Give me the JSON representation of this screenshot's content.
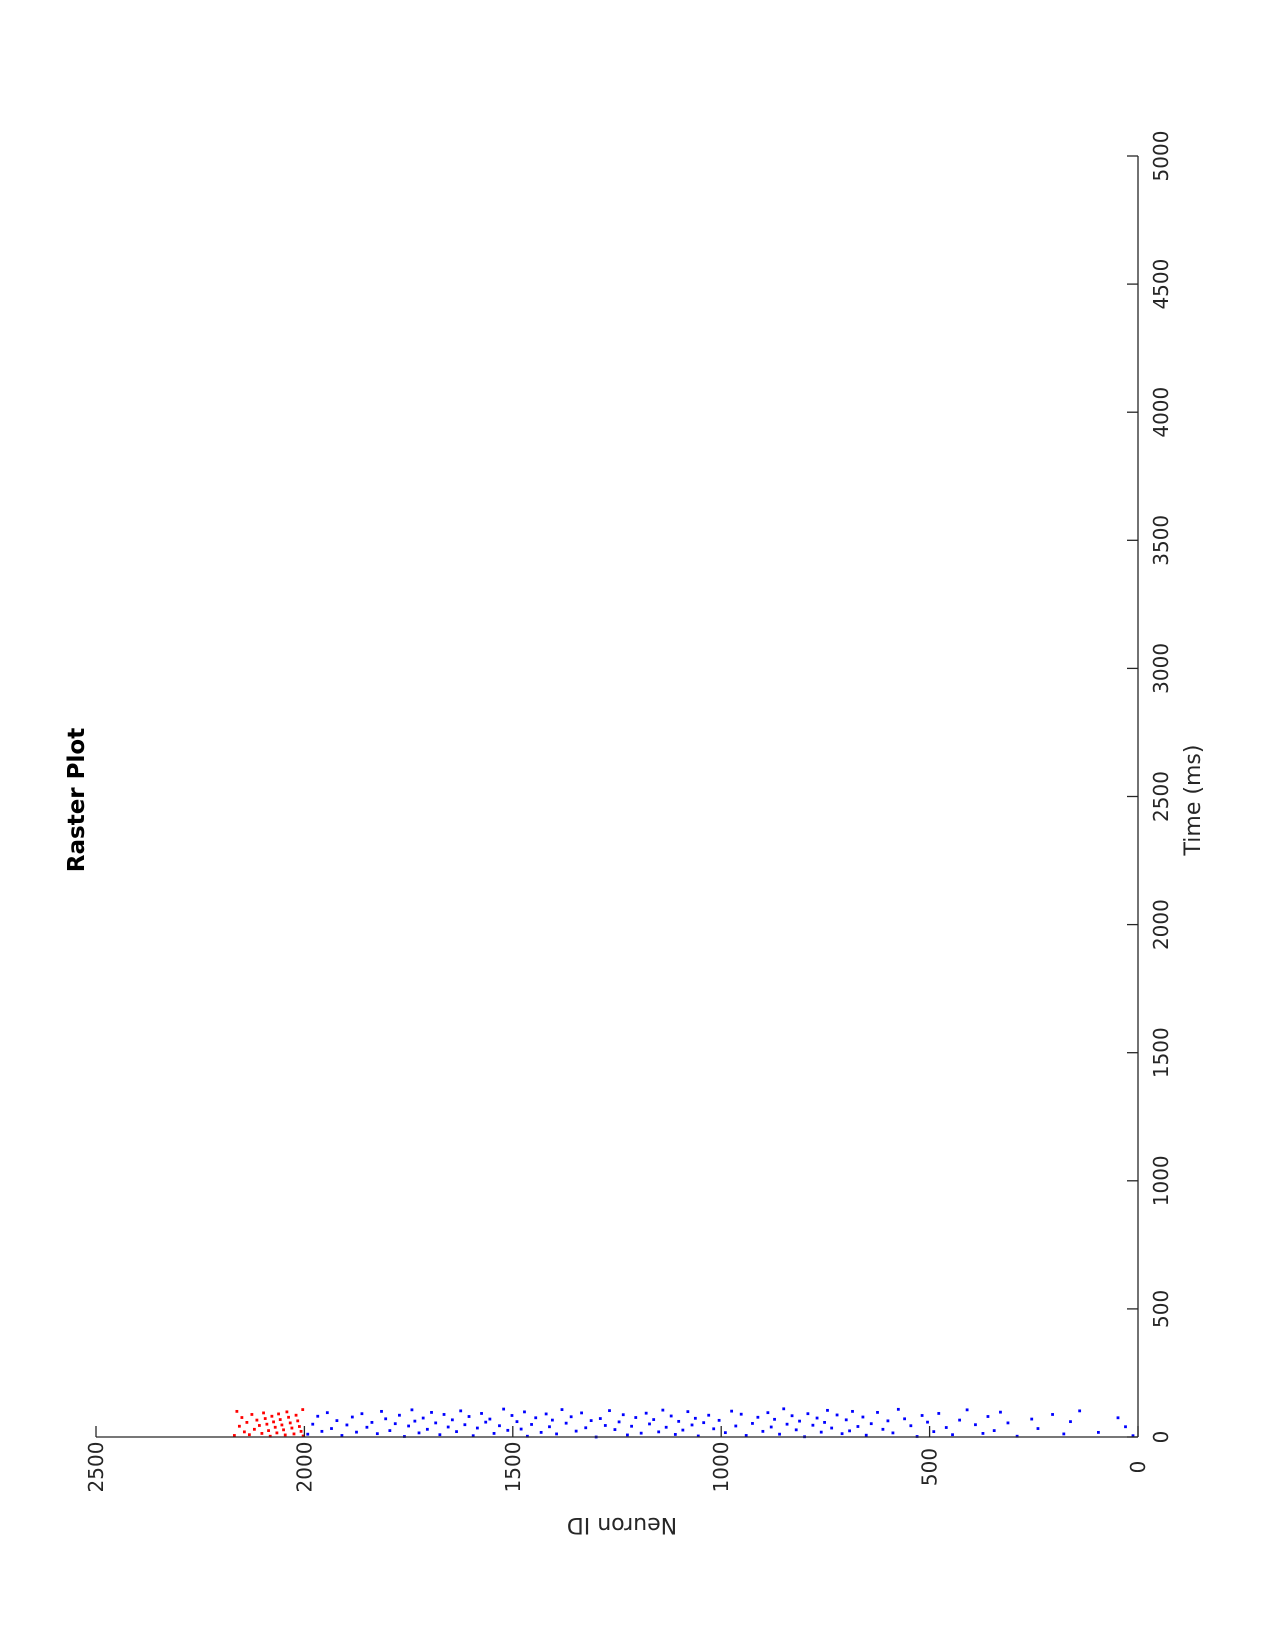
{
  "chart_data": {
    "type": "scatter",
    "title": "Raster Plot",
    "xlabel": "Time (ms)",
    "ylabel": "Neuron ID",
    "xlim": [
      0,
      5000
    ],
    "ylim": [
      0,
      2500
    ],
    "x_ticks": [
      0,
      500,
      1000,
      1500,
      2000,
      2500,
      3000,
      3500,
      4000,
      4500,
      5000
    ],
    "y_ticks": [
      0,
      500,
      1000,
      1500,
      2000,
      2500
    ],
    "grid": false,
    "legend": "none",
    "orientation": "rotated 90 degrees counter-clockwise on the page",
    "series": [
      {
        "color": "#0000ff",
        "neuron_id_range": [
          0,
          2000
        ],
        "time_range_ms": [
          0,
          110
        ],
        "points": [
          [
            5,
            12
          ],
          [
            40,
            30
          ],
          [
            75,
            48
          ],
          [
            18,
            95
          ],
          [
            102,
            140
          ],
          [
            60,
            162
          ],
          [
            12,
            178
          ],
          [
            88,
            205
          ],
          [
            33,
            240
          ],
          [
            70,
            255
          ],
          [
            3,
            290
          ],
          [
            55,
            312
          ],
          [
            97,
            330
          ],
          [
            25,
            345
          ],
          [
            80,
            360
          ],
          [
            14,
            372
          ],
          [
            48,
            390
          ],
          [
            106,
            410
          ],
          [
            66,
            428
          ],
          [
            9,
            445
          ],
          [
            37,
            460
          ],
          [
            92,
            478
          ],
          [
            21,
            490
          ],
          [
            58,
            505
          ],
          [
            84,
            518
          ],
          [
            2,
            530
          ],
          [
            44,
            545
          ],
          [
            71,
            560
          ],
          [
            108,
            575
          ],
          [
            16,
            588
          ],
          [
            63,
            600
          ],
          [
            30,
            612
          ],
          [
            96,
            625
          ],
          [
            52,
            640
          ],
          [
            7,
            652
          ],
          [
            78,
            660
          ],
          [
            41,
            672
          ],
          [
            100,
            685
          ],
          [
            24,
            692
          ],
          [
            67,
            700
          ],
          [
            13,
            710
          ],
          [
            86,
            722
          ],
          [
            35,
            735
          ],
          [
            104,
            745
          ],
          [
            57,
            752
          ],
          [
            19,
            760
          ],
          [
            74,
            770
          ],
          [
            46,
            780
          ],
          [
            91,
            792
          ],
          [
            1,
            800
          ],
          [
            62,
            812
          ],
          [
            28,
            820
          ],
          [
            83,
            830
          ],
          [
            50,
            842
          ],
          [
            110,
            850
          ],
          [
            11,
            860
          ],
          [
            69,
            872
          ],
          [
            39,
            880
          ],
          [
            95,
            888
          ],
          [
            22,
            900
          ],
          [
            77,
            912
          ],
          [
            53,
            925
          ],
          [
            6,
            940
          ],
          [
            89,
            952
          ],
          [
            43,
            965
          ],
          [
            101,
            975
          ],
          [
            17,
            990
          ],
          [
            65,
            1005
          ],
          [
            32,
            1018
          ],
          [
            85,
            1030
          ],
          [
            56,
            1042
          ],
          [
            4,
            1055
          ],
          [
            73,
            1062
          ],
          [
            47,
            1070
          ],
          [
            99,
            1080
          ],
          [
            27,
            1092
          ],
          [
            61,
            1102
          ],
          [
            10,
            1110
          ],
          [
            82,
            1120
          ],
          [
            38,
            1132
          ],
          [
            105,
            1140
          ],
          [
            20,
            1150
          ],
          [
            68,
            1162
          ],
          [
            51,
            1172
          ],
          [
            93,
            1180
          ],
          [
            15,
            1192
          ],
          [
            76,
            1205
          ],
          [
            42,
            1215
          ],
          [
            8,
            1225
          ],
          [
            87,
            1235
          ],
          [
            59,
            1245
          ],
          [
            29,
            1255
          ],
          [
            103,
            1268
          ],
          [
            45,
            1278
          ],
          [
            72,
            1290
          ],
          [
            0,
            1300
          ],
          [
            64,
            1312
          ],
          [
            36,
            1325
          ],
          [
            94,
            1335
          ],
          [
            23,
            1348
          ],
          [
            79,
            1360
          ],
          [
            54,
            1372
          ],
          [
            107,
            1382
          ],
          [
            12,
            1395
          ],
          [
            66,
            1405
          ],
          [
            40,
            1412
          ],
          [
            90,
            1420
          ],
          [
            18,
            1432
          ],
          [
            75,
            1445
          ],
          [
            49,
            1455
          ],
          [
            3,
            1465
          ],
          [
            98,
            1472
          ],
          [
            31,
            1480
          ],
          [
            60,
            1490
          ],
          [
            84,
            1502
          ],
          [
            26,
            1512
          ],
          [
            109,
            1522
          ],
          [
            44,
            1532
          ],
          [
            14,
            1545
          ],
          [
            70,
            1555
          ],
          [
            58,
            1565
          ],
          [
            92,
            1575
          ],
          [
            35,
            1585
          ],
          [
            5,
            1595
          ],
          [
            80,
            1605
          ],
          [
            48,
            1615
          ],
          [
            102,
            1625
          ],
          [
            21,
            1635
          ],
          [
            67,
            1645
          ],
          [
            39,
            1655
          ],
          [
            88,
            1665
          ],
          [
            9,
            1675
          ],
          [
            55,
            1685
          ],
          [
            96,
            1695
          ],
          [
            30,
            1705
          ],
          [
            74,
            1715
          ],
          [
            16,
            1725
          ],
          [
            62,
            1735
          ],
          [
            106,
            1742
          ],
          [
            43,
            1750
          ],
          [
            2,
            1760
          ],
          [
            85,
            1772
          ],
          [
            52,
            1782
          ],
          [
            25,
            1795
          ],
          [
            71,
            1805
          ],
          [
            100,
            1815
          ],
          [
            13,
            1825
          ],
          [
            57,
            1838
          ],
          [
            38,
            1850
          ],
          [
            91,
            1862
          ],
          [
            19,
            1875
          ],
          [
            78,
            1885
          ],
          [
            47,
            1898
          ],
          [
            6,
            1910
          ],
          [
            64,
            1922
          ],
          [
            33,
            1935
          ],
          [
            95,
            1945
          ],
          [
            22,
            1958
          ],
          [
            81,
            1968
          ],
          [
            50,
            1980
          ],
          [
            11,
            1992
          ]
        ]
      },
      {
        "color": "#ff0000",
        "neuron_id_range": [
          2000,
          2170
        ],
        "time_range_ms": [
          0,
          110
        ],
        "points": [
          [
            4,
            2003
          ],
          [
            22,
            2008
          ],
          [
            41,
            2012
          ],
          [
            63,
            2016
          ],
          [
            85,
            2020
          ],
          [
            107,
            2004
          ],
          [
            12,
            2025
          ],
          [
            35,
            2030
          ],
          [
            55,
            2034
          ],
          [
            77,
            2038
          ],
          [
            98,
            2042
          ],
          [
            8,
            2046
          ],
          [
            28,
            2050
          ],
          [
            47,
            2054
          ],
          [
            68,
            2058
          ],
          [
            90,
            2062
          ],
          [
            16,
            2066
          ],
          [
            38,
            2070
          ],
          [
            59,
            2074
          ],
          [
            81,
            2078
          ],
          [
            3,
            2082
          ],
          [
            25,
            2086
          ],
          [
            50,
            2090
          ],
          [
            72,
            2094
          ],
          [
            94,
            2098
          ],
          [
            14,
            2102
          ],
          [
            45,
            2108
          ],
          [
            66,
            2114
          ],
          [
            30,
            2120
          ],
          [
            88,
            2126
          ],
          [
            9,
            2132
          ],
          [
            57,
            2138
          ],
          [
            20,
            2144
          ],
          [
            76,
            2150
          ],
          [
            42,
            2156
          ],
          [
            100,
            2162
          ],
          [
            6,
            2168
          ]
        ]
      }
    ]
  }
}
